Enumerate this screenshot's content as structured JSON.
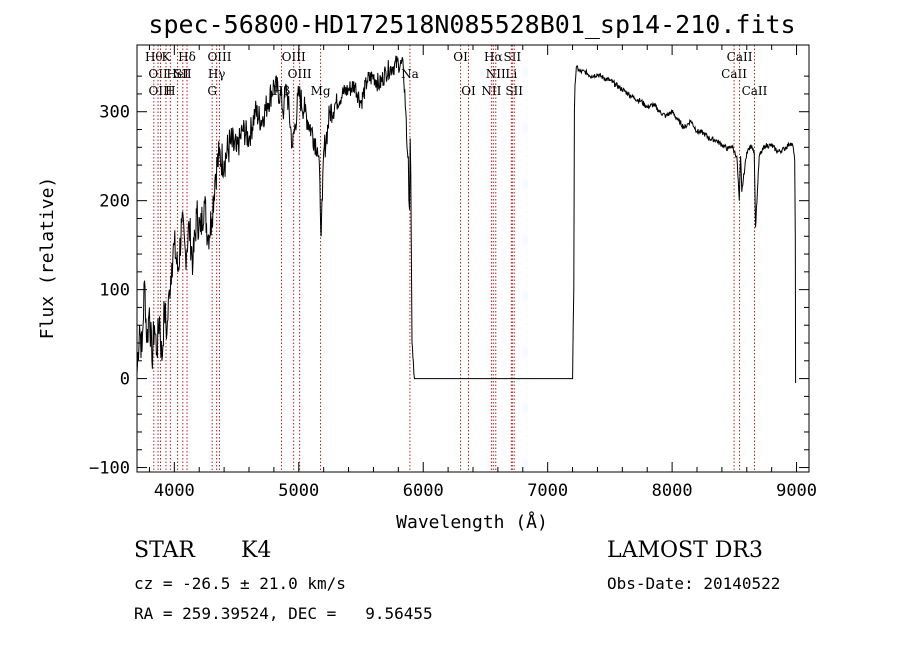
{
  "chart_data": {
    "type": "line",
    "title": "spec-56800-HD172518N085528B01_sp14-210.fits",
    "xlabel": "Wavelength (Å)",
    "ylabel": "Flux (relative)",
    "xlim": [
      3700,
      9100
    ],
    "ylim": [
      -105,
      375
    ],
    "xticks": [
      4000,
      5000,
      6000,
      7000,
      8000,
      9000
    ],
    "yticks": [
      -100,
      0,
      100,
      200,
      300
    ],
    "series": [
      {
        "name": "flux",
        "x": [
          3700,
          3720,
          3740,
          3760,
          3780,
          3800,
          3820,
          3840,
          3860,
          3880,
          3900,
          3920,
          3940,
          3960,
          3980,
          4000,
          4030,
          4060,
          4090,
          4120,
          4150,
          4180,
          4210,
          4240,
          4270,
          4300,
          4330,
          4360,
          4400,
          4450,
          4500,
          4550,
          4600,
          4650,
          4700,
          4750,
          4800,
          4850,
          4880,
          4900,
          4950,
          5000,
          5050,
          5100,
          5150,
          5170,
          5180,
          5190,
          5200,
          5220,
          5250,
          5300,
          5350,
          5400,
          5450,
          5500,
          5550,
          5600,
          5650,
          5700,
          5750,
          5800,
          5840,
          5860,
          5870,
          5880,
          5885,
          5890,
          5895,
          5900,
          5910,
          5920,
          5925,
          5930,
          7200,
          7205,
          7210,
          7215,
          7220,
          7230,
          7260,
          7300,
          7350,
          7400,
          7450,
          7500,
          7550,
          7600,
          7650,
          7700,
          7750,
          7800,
          7850,
          7900,
          7950,
          8000,
          8050,
          8100,
          8150,
          8200,
          8250,
          8300,
          8350,
          8400,
          8450,
          8480,
          8500,
          8520,
          8540,
          8550,
          8560,
          8600,
          8640,
          8660,
          8670,
          8700,
          8750,
          8800,
          8850,
          8900,
          8950,
          8970,
          8985,
          8990,
          8992
        ],
        "y": [
          5,
          60,
          30,
          110,
          40,
          80,
          20,
          60,
          30,
          70,
          20,
          80,
          50,
          100,
          130,
          150,
          120,
          175,
          140,
          170,
          130,
          185,
          165,
          200,
          160,
          180,
          230,
          250,
          245,
          265,
          255,
          280,
          270,
          300,
          290,
          310,
          330,
          320,
          300,
          330,
          260,
          320,
          300,
          280,
          260,
          220,
          160,
          200,
          255,
          270,
          300,
          310,
          320,
          325,
          330,
          310,
          335,
          340,
          330,
          345,
          350,
          355,
          350,
          300,
          260,
          250,
          200,
          190,
          270,
          230,
          40,
          20,
          5,
          0,
          0,
          60,
          100,
          300,
          330,
          350,
          345,
          345,
          340,
          342,
          338,
          335,
          330,
          325,
          320,
          315,
          312,
          305,
          308,
          300,
          295,
          300,
          290,
          282,
          290,
          278,
          276,
          270,
          268,
          263,
          258,
          262,
          255,
          250,
          200,
          250,
          210,
          255,
          262,
          255,
          170,
          250,
          262,
          262,
          255,
          258,
          265,
          262,
          245,
          160,
          -5
        ]
      }
    ],
    "lines": [
      {
        "x": 3835,
        "label": "Hθ",
        "row": 0
      },
      {
        "x": 3869,
        "label": "OII",
        "row": 1
      },
      {
        "x": 3889,
        "label": "OIII",
        "row": 2
      },
      {
        "x": 3933,
        "label": "K",
        "row": 0
      },
      {
        "x": 3968,
        "label": "H",
        "row": 2
      },
      {
        "x": 4026,
        "label": "HeI",
        "row": 1
      },
      {
        "x": 4068,
        "label": "SII",
        "row": 1
      },
      {
        "x": 4102,
        "label": "Hδ",
        "row": 0
      },
      {
        "x": 4304,
        "label": "G",
        "row": 2
      },
      {
        "x": 4340,
        "label": "Hγ",
        "row": 1
      },
      {
        "x": 4363,
        "label": "OIII",
        "row": 0
      },
      {
        "x": 4861,
        "label": "Hβ",
        "row": 2
      },
      {
        "x": 4959,
        "label": "OIII",
        "row": 0
      },
      {
        "x": 5007,
        "label": "OIII",
        "row": 1
      },
      {
        "x": 5175,
        "label": "Mg",
        "row": 2
      },
      {
        "x": 5893,
        "label": "Na",
        "row": 1
      },
      {
        "x": 6300,
        "label": "OI",
        "row": 0
      },
      {
        "x": 6364,
        "label": "OI",
        "row": 2
      },
      {
        "x": 6548,
        "label": "NII",
        "row": 2
      },
      {
        "x": 6563,
        "label": "Hα",
        "row": 0
      },
      {
        "x": 6583,
        "label": "NII",
        "row": 1
      },
      {
        "x": 6708,
        "label": "Li",
        "row": 1
      },
      {
        "x": 6716,
        "label": "SII",
        "row": 0
      },
      {
        "x": 6731,
        "label": "SII",
        "row": 2
      },
      {
        "x": 8498,
        "label": "CaII",
        "row": 1
      },
      {
        "x": 8542,
        "label": "CaII",
        "row": 0
      },
      {
        "x": 8662,
        "label": "CaII",
        "row": 2
      }
    ]
  },
  "info": {
    "class_label": "STAR",
    "subclass": "K4",
    "survey": "LAMOST DR3",
    "cz": "cz = -26.5 ± 21.0 km/s",
    "obs_date": "Obs-Date: 20140522",
    "radec": "RA = 259.39524, DEC =   9.56455"
  }
}
